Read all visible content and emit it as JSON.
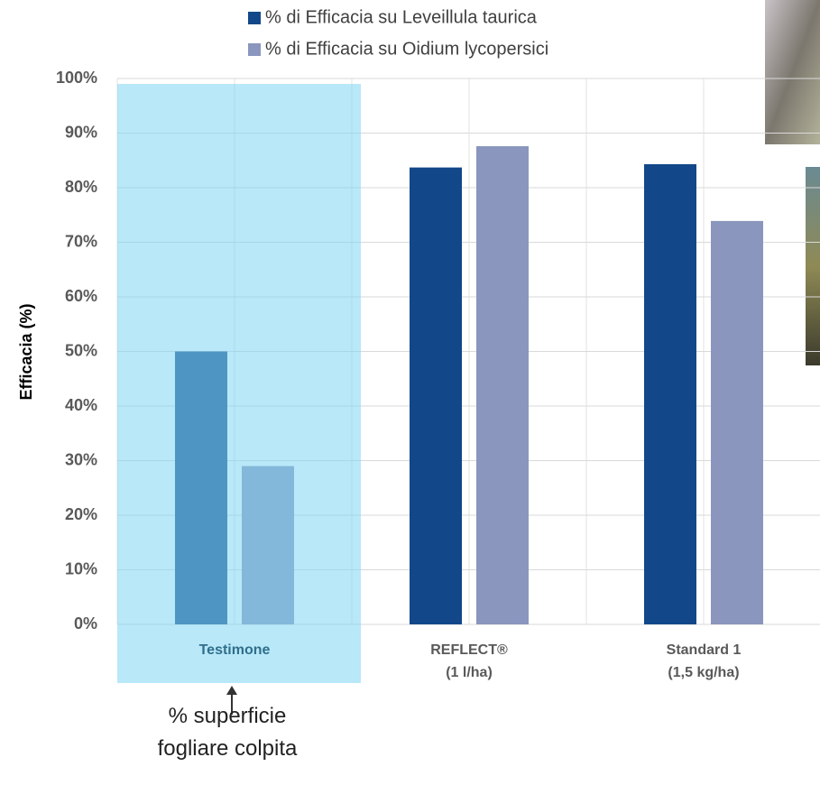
{
  "chart_data": {
    "type": "bar",
    "y_label": "Efficacia (%)",
    "categories": [
      "Testimone",
      "REFLECT®\n(1 l/ha)",
      "Standard 1\n(1,5 kg/ha)"
    ],
    "series": [
      {
        "name": "% di Efficacia su Leveillula taurica",
        "color": "#12488a",
        "values": [
          50,
          83.7,
          84.3
        ]
      },
      {
        "name": "% di Efficacia su Oidium lycopersici",
        "color": "#8a96bd",
        "values": [
          29,
          87.6,
          73.9
        ]
      }
    ],
    "ylim": [
      0,
      100
    ],
    "yticks": [
      {
        "value": 0,
        "label": "0%"
      },
      {
        "value": 10,
        "label": "10%"
      },
      {
        "value": 20,
        "label": "20%"
      },
      {
        "value": 30,
        "label": "30%"
      },
      {
        "value": 40,
        "label": "40%"
      },
      {
        "value": 50,
        "label": "50%"
      },
      {
        "value": 60,
        "label": "60%"
      },
      {
        "value": 70,
        "label": "70%"
      },
      {
        "value": 80,
        "label": "80%"
      },
      {
        "value": 90,
        "label": "90%"
      },
      {
        "value": 100,
        "label": "100%"
      }
    ],
    "grid": true,
    "annotation": "% superficie\nfogliare colpita"
  }
}
